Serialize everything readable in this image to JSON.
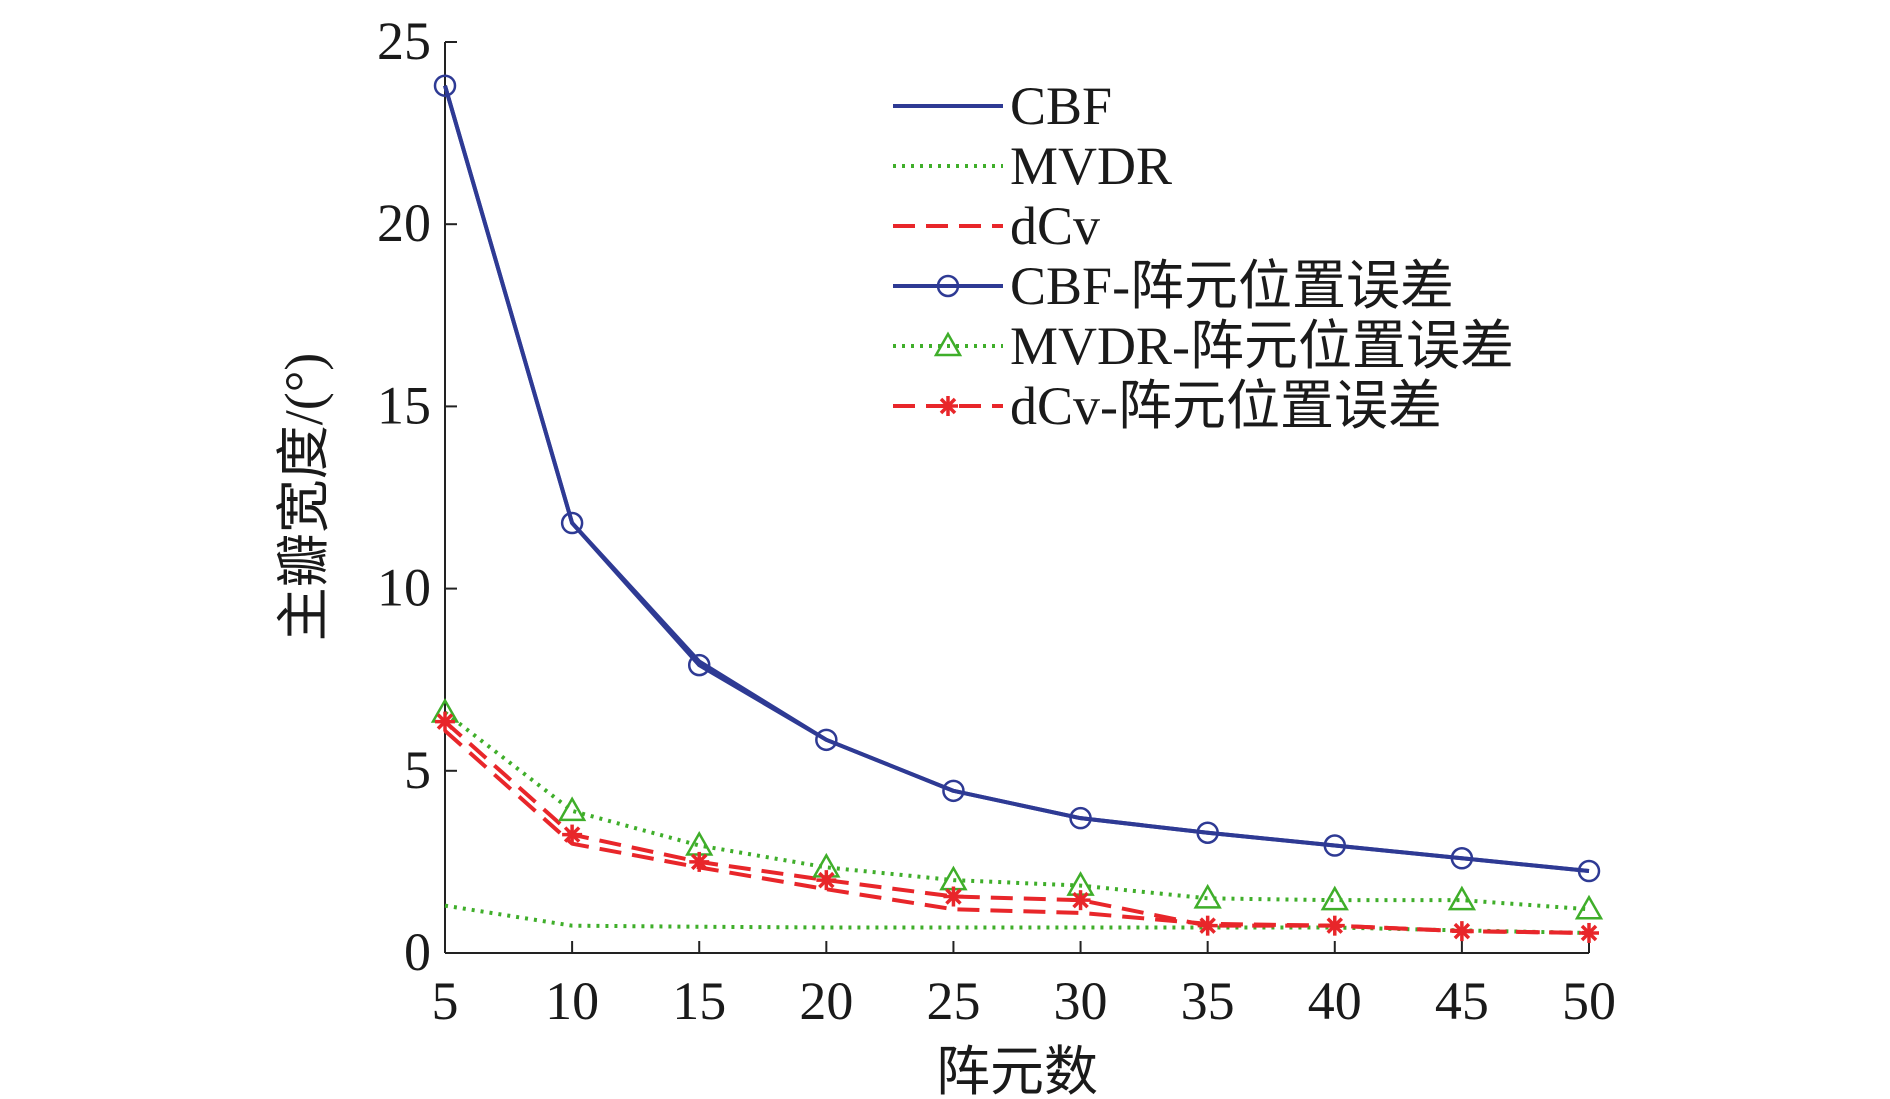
{
  "chart_data": {
    "type": "line",
    "xlabel": "阵元数",
    "ylabel": "主瓣宽度/(°)",
    "x": [
      5,
      10,
      15,
      20,
      25,
      30,
      35,
      40,
      45,
      50
    ],
    "xlim": [
      5,
      50
    ],
    "ylim": [
      0,
      25
    ],
    "x_ticks": [
      "5",
      "10",
      "15",
      "20",
      "25",
      "30",
      "35",
      "40",
      "45",
      "50"
    ],
    "y_ticks": [
      "0",
      "5",
      "10",
      "15",
      "20",
      "25"
    ],
    "legend_position": "top-right",
    "grid": false,
    "series": [
      {
        "name": "CBF",
        "color": "#2e3a94",
        "dash": "solid",
        "marker": "none",
        "values": [
          23.8,
          11.8,
          8.0,
          5.85,
          4.45,
          3.7,
          3.3,
          2.95,
          2.6,
          2.25
        ]
      },
      {
        "name": "MVDR",
        "color": "#3fae2a",
        "dash": "dotted",
        "marker": "none",
        "values": [
          1.3,
          0.75,
          0.72,
          0.7,
          0.7,
          0.7,
          0.7,
          0.7,
          0.62,
          0.55
        ]
      },
      {
        "name": "dCv",
        "color": "#e8262a",
        "dash": "dashed",
        "marker": "none",
        "values": [
          6.1,
          3.0,
          2.35,
          1.75,
          1.2,
          1.1,
          0.8,
          0.75,
          0.6,
          0.55
        ]
      },
      {
        "name": "CBF-阵元位置误差",
        "color": "#2e3a94",
        "dash": "solid",
        "marker": "circle",
        "values": [
          23.8,
          11.8,
          7.9,
          5.85,
          4.45,
          3.7,
          3.3,
          2.95,
          2.6,
          2.25
        ]
      },
      {
        "name": "MVDR-阵元位置误差",
        "color": "#3fae2a",
        "dash": "dotted",
        "marker": "triangle",
        "values": [
          6.6,
          3.9,
          2.95,
          2.35,
          2.0,
          1.85,
          1.5,
          1.45,
          1.45,
          1.2
        ]
      },
      {
        "name": "dCv-阵元位置误差",
        "color": "#e8262a",
        "dash": "dashed",
        "marker": "asterisk",
        "values": [
          6.35,
          3.25,
          2.5,
          2.0,
          1.55,
          1.45,
          0.75,
          0.75,
          0.6,
          0.55
        ]
      }
    ]
  }
}
